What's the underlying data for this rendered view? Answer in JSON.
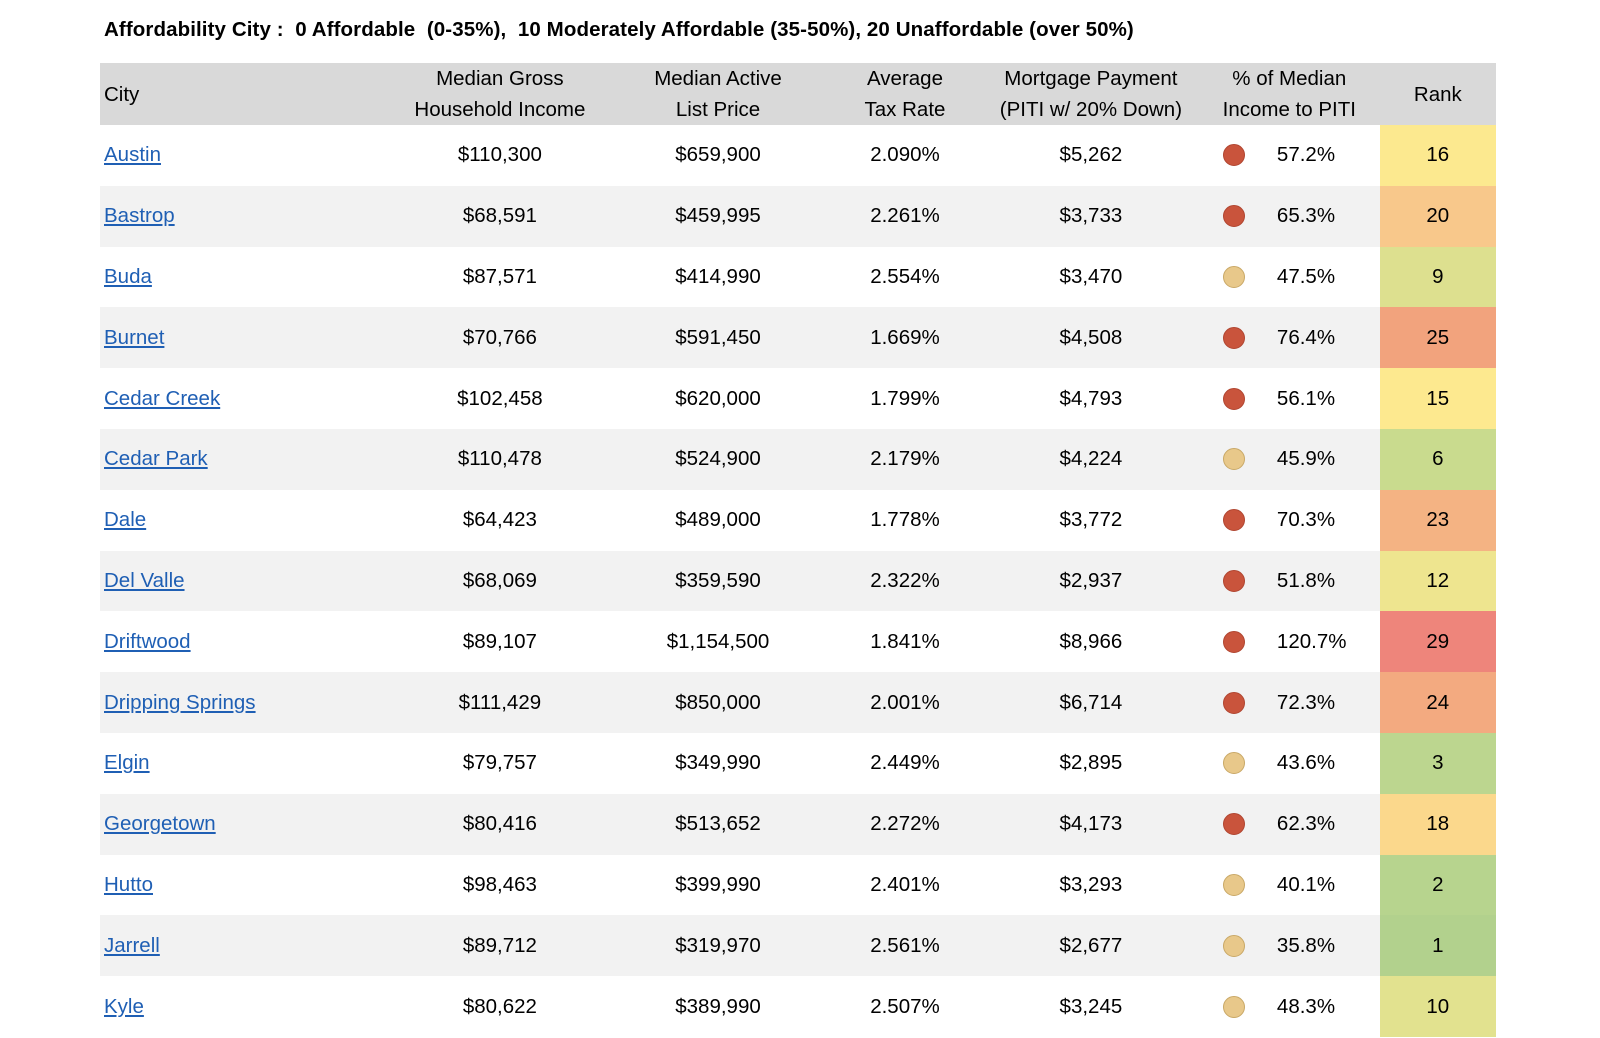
{
  "title": "Affordability City :  0 Affordable  (0-35%),  10 Moderately Affordable (35-50%), 20 Unaffordable (over 50%)",
  "headers": {
    "city": "City",
    "income_line1": "Median Gross",
    "income_line2": "Household Income",
    "list_line1": "Median Active",
    "list_line2": "List Price",
    "tax_line1": "Average",
    "tax_line2": "Tax Rate",
    "mort_line1": "Mortgage Payment",
    "mort_line2": "(PITI w/ 20% Down)",
    "pct_line1": "% of Median",
    "pct_line2": "Income to PITI",
    "rank": "Rank"
  },
  "colors": {
    "dot_unaffordable": "#c9543c",
    "dot_moderate": "#e8c88a",
    "link": "#1f5fb4",
    "header_bg": "#d9d9d9",
    "stripe_bg": "#f2f2f2"
  },
  "rows": [
    {
      "city": "Austin",
      "income": "$110,300",
      "list_price": "$659,900",
      "tax_rate": "2.090%",
      "mortgage": "$5,262",
      "indicator": "red",
      "pct": "57.2%",
      "rank": "16",
      "rank_color": "#fce98f"
    },
    {
      "city": "Bastrop",
      "income": "$68,591",
      "list_price": "$459,995",
      "tax_rate": "2.261%",
      "mortgage": "$3,733",
      "indicator": "red",
      "pct": "65.3%",
      "rank": "20",
      "rank_color": "#f8c88b"
    },
    {
      "city": "Buda",
      "income": "$87,571",
      "list_price": "$414,990",
      "tax_rate": "2.554%",
      "mortgage": "$3,470",
      "indicator": "tan",
      "pct": "47.5%",
      "rank": "9",
      "rank_color": "#dde08f"
    },
    {
      "city": "Burnet",
      "income": "$70,766",
      "list_price": "$591,450",
      "tax_rate": "1.669%",
      "mortgage": "$4,508",
      "indicator": "red",
      "pct": "76.4%",
      "rank": "25",
      "rank_color": "#f2a37d"
    },
    {
      "city": "Cedar Creek",
      "income": "$102,458",
      "list_price": "$620,000",
      "tax_rate": "1.799%",
      "mortgage": "$4,793",
      "indicator": "red",
      "pct": "56.1%",
      "rank": "15",
      "rank_color": "#fde98f"
    },
    {
      "city": "Cedar Park",
      "income": "$110,478",
      "list_price": "$524,900",
      "tax_rate": "2.179%",
      "mortgage": "$4,224",
      "indicator": "tan",
      "pct": "45.9%",
      "rank": "6",
      "rank_color": "#c9db8e"
    },
    {
      "city": "Dale",
      "income": "$64,423",
      "list_price": "$489,000",
      "tax_rate": "1.778%",
      "mortgage": "$3,772",
      "indicator": "red",
      "pct": "70.3%",
      "rank": "23",
      "rank_color": "#f4b383"
    },
    {
      "city": "Del Valle",
      "income": "$68,069",
      "list_price": "$359,590",
      "tax_rate": "2.322%",
      "mortgage": "$2,937",
      "indicator": "red",
      "pct": "51.8%",
      "rank": "12",
      "rank_color": "#eee58f"
    },
    {
      "city": "Driftwood",
      "income": "$89,107",
      "list_price": "$1,154,500",
      "tax_rate": "1.841%",
      "mortgage": "$8,966",
      "indicator": "red",
      "pct": "120.7%",
      "rank": "29",
      "rank_color": "#ee857b"
    },
    {
      "city": "Dripping Springs",
      "income": "$111,429",
      "list_price": "$850,000",
      "tax_rate": "2.001%",
      "mortgage": "$6,714",
      "indicator": "red",
      "pct": "72.3%",
      "rank": "24",
      "rank_color": "#f3aa80"
    },
    {
      "city": "Elgin",
      "income": "$79,757",
      "list_price": "$349,990",
      "tax_rate": "2.449%",
      "mortgage": "$2,895",
      "indicator": "tan",
      "pct": "43.6%",
      "rank": "3",
      "rank_color": "#bcd68f"
    },
    {
      "city": "Georgetown",
      "income": "$80,416",
      "list_price": "$513,652",
      "tax_rate": "2.272%",
      "mortgage": "$4,173",
      "indicator": "red",
      "pct": "62.3%",
      "rank": "18",
      "rank_color": "#fbd88c"
    },
    {
      "city": "Hutto",
      "income": "$98,463",
      "list_price": "$399,990",
      "tax_rate": "2.401%",
      "mortgage": "$3,293",
      "indicator": "tan",
      "pct": "40.1%",
      "rank": "2",
      "rank_color": "#b7d48e"
    },
    {
      "city": "Jarrell",
      "income": "$89,712",
      "list_price": "$319,970",
      "tax_rate": "2.561%",
      "mortgage": "$2,677",
      "indicator": "tan",
      "pct": "35.8%",
      "rank": "1",
      "rank_color": "#b2d18d"
    },
    {
      "city": "Kyle",
      "income": "$80,622",
      "list_price": "$389,990",
      "tax_rate": "2.507%",
      "mortgage": "$3,245",
      "indicator": "tan",
      "pct": "48.3%",
      "rank": "10",
      "rank_color": "#e2e28f"
    }
  ]
}
